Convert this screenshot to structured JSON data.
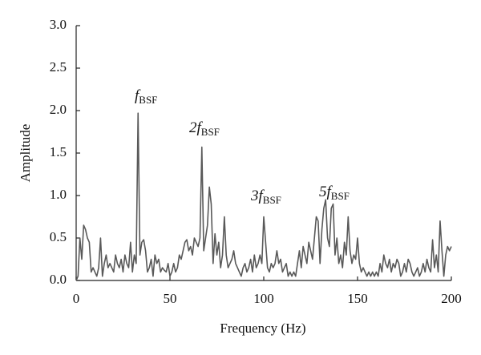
{
  "chart_data": {
    "type": "line",
    "x_label": "Frequency (Hz)",
    "y_label": "Amplitude",
    "x": [
      0,
      1,
      2,
      3,
      4,
      5,
      6,
      7,
      8,
      9,
      10,
      11,
      12,
      13,
      14,
      15,
      16,
      17,
      18,
      19,
      20,
      21,
      22,
      23,
      24,
      25,
      26,
      27,
      28,
      29,
      30,
      31,
      32,
      33,
      34,
      35,
      36,
      37,
      38,
      39,
      40,
      41,
      42,
      43,
      44,
      45,
      46,
      47,
      48,
      49,
      50,
      51,
      52,
      53,
      54,
      55,
      56,
      57,
      58,
      59,
      60,
      61,
      62,
      63,
      64,
      65,
      66,
      67,
      68,
      69,
      70,
      71,
      72,
      73,
      74,
      75,
      76,
      77,
      78,
      79,
      80,
      81,
      82,
      83,
      84,
      85,
      86,
      87,
      88,
      89,
      90,
      91,
      92,
      93,
      94,
      95,
      96,
      97,
      98,
      99,
      100,
      101,
      102,
      103,
      104,
      105,
      106,
      107,
      108,
      109,
      110,
      111,
      112,
      113,
      114,
      115,
      116,
      117,
      118,
      119,
      120,
      121,
      122,
      123,
      124,
      125,
      126,
      127,
      128,
      129,
      130,
      131,
      132,
      133,
      134,
      135,
      136,
      137,
      138,
      139,
      140,
      141,
      142,
      143,
      144,
      145,
      146,
      147,
      148,
      149,
      150,
      151,
      152,
      153,
      154,
      155,
      156,
      157,
      158,
      159,
      160,
      161,
      162,
      163,
      164,
      165,
      166,
      167,
      168,
      169,
      170,
      171,
      172,
      173,
      174,
      175,
      176,
      177,
      178,
      179,
      180,
      181,
      182,
      183,
      184,
      185,
      186,
      187,
      188,
      189,
      190,
      191,
      192,
      193,
      194,
      195,
      196,
      197,
      198,
      199,
      200
    ],
    "series": [
      {
        "color": "#595959",
        "values": [
          0.0,
          0.05,
          0.5,
          0.25,
          0.65,
          0.6,
          0.5,
          0.45,
          0.1,
          0.15,
          0.1,
          0.05,
          0.15,
          0.5,
          0.05,
          0.2,
          0.3,
          0.15,
          0.2,
          0.15,
          0.1,
          0.3,
          0.2,
          0.15,
          0.25,
          0.1,
          0.3,
          0.2,
          0.15,
          0.45,
          0.1,
          0.3,
          0.2,
          1.97,
          0.3,
          0.45,
          0.48,
          0.35,
          0.1,
          0.15,
          0.25,
          0.05,
          0.3,
          0.2,
          0.25,
          0.1,
          0.15,
          0.12,
          0.1,
          0.2,
          0.05,
          0.1,
          0.2,
          0.1,
          0.15,
          0.3,
          0.25,
          0.35,
          0.45,
          0.48,
          0.35,
          0.4,
          0.3,
          0.5,
          0.45,
          0.4,
          0.5,
          1.57,
          0.35,
          0.5,
          0.65,
          1.1,
          0.9,
          0.2,
          0.55,
          0.3,
          0.45,
          0.15,
          0.3,
          0.75,
          0.3,
          0.15,
          0.2,
          0.25,
          0.35,
          0.2,
          0.15,
          0.1,
          0.05,
          0.15,
          0.2,
          0.1,
          0.15,
          0.25,
          0.1,
          0.3,
          0.15,
          0.2,
          0.3,
          0.2,
          0.75,
          0.45,
          0.15,
          0.1,
          0.2,
          0.15,
          0.2,
          0.35,
          0.2,
          0.25,
          0.1,
          0.15,
          0.2,
          0.05,
          0.1,
          0.05,
          0.1,
          0.05,
          0.2,
          0.35,
          0.15,
          0.4,
          0.3,
          0.2,
          0.45,
          0.35,
          0.25,
          0.5,
          0.75,
          0.7,
          0.2,
          0.6,
          0.85,
          0.95,
          0.5,
          0.4,
          0.85,
          0.9,
          0.3,
          0.5,
          0.2,
          0.3,
          0.15,
          0.45,
          0.3,
          0.75,
          0.35,
          0.2,
          0.3,
          0.25,
          0.5,
          0.2,
          0.1,
          0.15,
          0.1,
          0.05,
          0.1,
          0.05,
          0.1,
          0.05,
          0.1,
          0.05,
          0.2,
          0.1,
          0.3,
          0.2,
          0.15,
          0.25,
          0.1,
          0.2,
          0.15,
          0.25,
          0.2,
          0.05,
          0.1,
          0.2,
          0.1,
          0.25,
          0.2,
          0.1,
          0.05,
          0.1,
          0.15,
          0.05,
          0.1,
          0.2,
          0.1,
          0.25,
          0.15,
          0.1,
          0.48,
          0.15,
          0.3,
          0.1,
          0.7,
          0.35,
          0.05,
          0.3,
          0.4,
          0.35,
          0.4
        ]
      }
    ],
    "xlim": [
      0,
      200
    ],
    "xticks": [
      0,
      50,
      100,
      150,
      200
    ],
    "ylim": [
      0,
      3
    ],
    "yticks": [
      {
        "value": 0,
        "label": "0.0"
      },
      {
        "value": 0.5,
        "label": "0.5"
      },
      {
        "value": 1,
        "label": "1.0"
      },
      {
        "value": 1.5,
        "label": "1.5"
      },
      {
        "value": 2,
        "label": "2.0"
      },
      {
        "value": 2.5,
        "label": "2.5"
      },
      {
        "value": 3,
        "label": "3.0"
      }
    ],
    "grid": false,
    "annotations": [
      {
        "text": "f",
        "sub": "BSF"
      },
      {
        "text": "2f",
        "sub": "BSF"
      },
      {
        "text": "3f",
        "sub": "BSF"
      },
      {
        "text": "5f",
        "sub": "BSF"
      }
    ]
  }
}
